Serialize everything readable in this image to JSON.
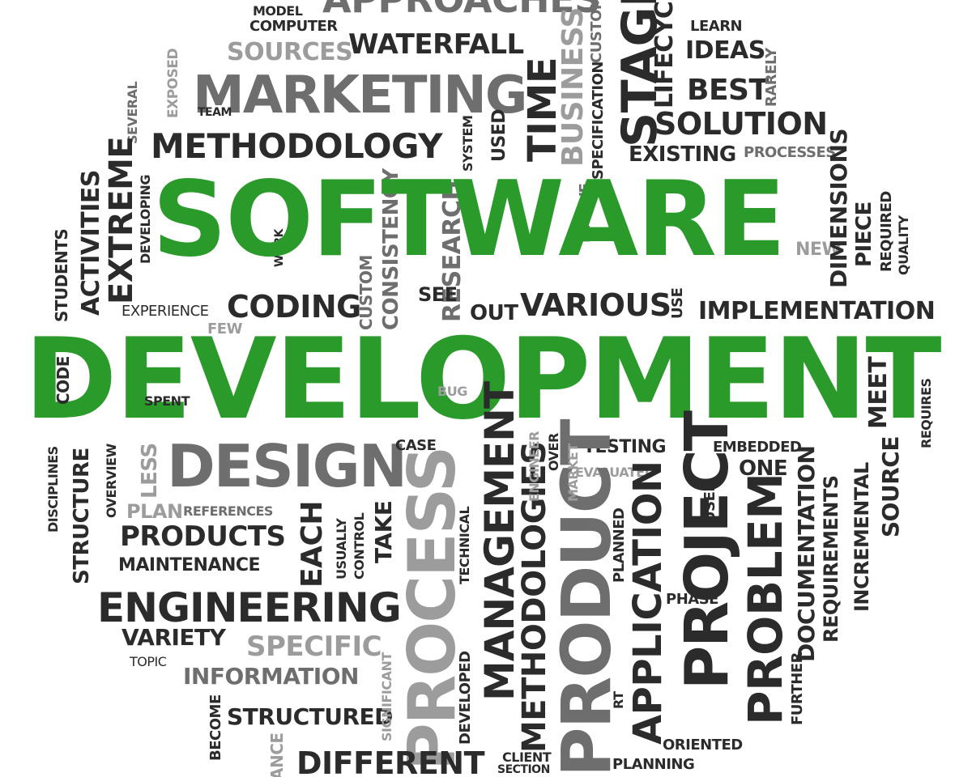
{
  "headline": {
    "line1": "SOFTWARE",
    "line2": "DEVELOPMENT",
    "color": "#2a9a2a"
  },
  "words": {
    "approaches": "APPROACHES",
    "model": "MODEL",
    "computer": "COMPUTER",
    "waterfall": "WATERFALL",
    "sources": "SOURCES",
    "marketing": "MARKETING",
    "exposed": "EXPOSED",
    "team": "TEAM",
    "several": "SEVERAL",
    "methodology": "METHODOLOGY",
    "time": "TIME",
    "business": "BUSINESS",
    "custom_top": "CUSTOM",
    "stage": "STAGE",
    "lifecycle": "LIFECYCLE",
    "learn": "LEARN",
    "ideas": "IDEAS",
    "best": "BEST",
    "rarely": "RARELY",
    "solution": "SOLUTION",
    "specification": "SPECIFICATION",
    "existing": "EXISTING",
    "processes": "PROCESSES",
    "system": "SYSTEM",
    "used": "USED",
    "extreme": "EXTREME",
    "activities": "ACTIVITIES",
    "developing": "DEVELOPING",
    "students": "STUDENTS",
    "work": "WORK",
    "research": "RESEARCH",
    "consistency": "CONSISTENCY",
    "custom_mid": "CUSTOM",
    "evolve": "EVOLVE",
    "new": "NEW",
    "dimensions": "DIMENSIONS",
    "piece": "PIECE",
    "required": "REQUIRED",
    "quality": "QUALITY",
    "coding": "CODING",
    "experience": "EXPERIENCE",
    "see": "SEE",
    "out": "OUT",
    "various": "VARIOUS",
    "use": "USE",
    "implementation": "IMPLEMENTATION",
    "few": "FEW",
    "code": "CODE",
    "spent": "SPENT",
    "bug": "BUG",
    "meet": "MEET",
    "requires": "REQUIRES",
    "design": "DESIGN",
    "case": "CASE",
    "testing": "TESTING",
    "embedded": "EMBEDDED",
    "evaluated": "EVALUATED",
    "one": "ONE",
    "structure": "STRUCTURE",
    "disciplines": "DISCIPLINES",
    "overview": "OVERVIEW",
    "less": "LESS",
    "plan": "PLAN",
    "references": "REFERENCES",
    "products": "PRODUCTS",
    "maintenance": "MAINTENANCE",
    "each": "EACH",
    "usually": "USUALLY",
    "control": "CONTROL",
    "take": "TAKE",
    "process": "PROCESS",
    "management": "MANAGEMENT",
    "methodologies": "METHODOLOGIES",
    "product": "PRODUCT",
    "technical": "TECHNICAL",
    "engineer": "ENGINEER",
    "market": "MARKET",
    "over": "OVER",
    "planned": "PLANNED",
    "application": "APPLICATION",
    "phase": "PHASE",
    "project": "PROJECT",
    "user": "USER",
    "problem": "PROBLEM",
    "documentation": "DOCUMENTATION",
    "requirements": "REQUIREMENTS",
    "incremental": "INCREMENTAL",
    "source": "SOURCE",
    "engineering": "ENGINEERING",
    "variety": "VARIETY",
    "specific": "SPECIFIC",
    "topic": "TOPIC",
    "information": "INFORMATION",
    "become": "BECOME",
    "structured": "STRUCTURED",
    "significant": "SIGNIFICANT",
    "developed": "DEVELOPED",
    "rt": "RT",
    "further": "FURTHER",
    "oriented": "ORIENTED",
    "planning": "PLANNING",
    "different": "DIFFERENT",
    "client": "CLIENT",
    "section": "SECTION",
    "ance": "ANCE"
  }
}
